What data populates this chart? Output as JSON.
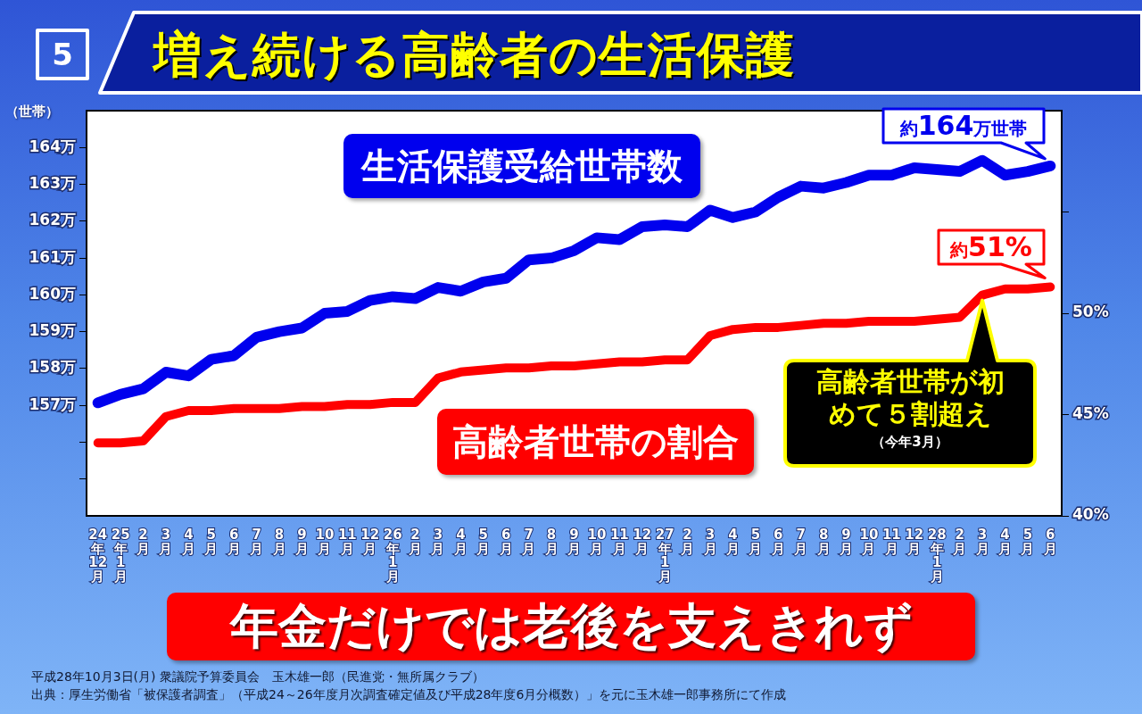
{
  "chart_data": {
    "type": "line",
    "title": "増え続ける高齢者の生活保護",
    "ylabel": "（世帯）",
    "categories": [
      "24年12月",
      "25年1月",
      "2月",
      "3月",
      "4月",
      "5月",
      "6月",
      "7月",
      "8月",
      "9月",
      "10月",
      "11月",
      "12月",
      "26年1月",
      "2月",
      "3月",
      "4月",
      "5月",
      "6月",
      "7月",
      "8月",
      "9月",
      "10月",
      "11月",
      "12月",
      "27年1月",
      "2月",
      "3月",
      "4月",
      "5月",
      "6月",
      "7月",
      "8月",
      "9月",
      "10月",
      "11月",
      "12月",
      "28年1月",
      "2月",
      "3月",
      "4月",
      "5月",
      "6月"
    ],
    "series": [
      {
        "name": "生活保護受給世帯数",
        "color": "#0000ee",
        "axis": "y",
        "values": [
          157.07,
          157.3,
          157.45,
          157.9,
          157.8,
          158.25,
          158.35,
          158.85,
          159.0,
          159.1,
          159.5,
          159.55,
          159.85,
          159.95,
          159.9,
          160.2,
          160.1,
          160.35,
          160.45,
          160.95,
          161.0,
          161.2,
          161.55,
          161.5,
          161.85,
          161.9,
          161.85,
          162.3,
          162.1,
          162.25,
          162.65,
          162.95,
          162.9,
          163.05,
          163.25,
          163.25,
          163.45,
          163.4,
          163.35,
          163.65,
          163.25,
          163.35,
          163.5
        ]
      },
      {
        "name": "高齢者世帯の割合",
        "color": "#ff0000",
        "axis": "y2",
        "values": [
          43.6,
          43.6,
          43.7,
          44.9,
          45.2,
          45.2,
          45.3,
          45.3,
          45.3,
          45.4,
          45.4,
          45.5,
          45.5,
          45.6,
          45.6,
          46.8,
          47.1,
          47.2,
          47.3,
          47.3,
          47.4,
          47.4,
          47.5,
          47.6,
          47.6,
          47.7,
          47.7,
          48.9,
          49.2,
          49.3,
          49.3,
          49.4,
          49.5,
          49.5,
          49.6,
          49.6,
          49.6,
          49.7,
          49.8,
          50.9,
          51.2,
          51.2,
          51.3
        ]
      }
    ],
    "ylim": [
      154,
      165
    ],
    "yticks": [
      {
        "value": 155,
        "label": null
      },
      {
        "value": 156,
        "label": null
      },
      {
        "value": 157,
        "label": "157万"
      },
      {
        "value": 158,
        "label": "158万"
      },
      {
        "value": 159,
        "label": "159万"
      },
      {
        "value": 160,
        "label": "160万"
      },
      {
        "value": 161,
        "label": "161万"
      },
      {
        "value": 162,
        "label": "162万"
      },
      {
        "value": 163,
        "label": "163万"
      },
      {
        "value": 164,
        "label": "164万"
      }
    ],
    "y2lim": [
      40,
      60
    ],
    "y2ticks": [
      {
        "value": 40,
        "label": "40%"
      },
      {
        "value": 45,
        "label": "45%"
      },
      {
        "value": 50,
        "label": "50%"
      },
      {
        "value": 55,
        "label": null
      }
    ],
    "marker": "none",
    "annotations": [
      "5",
      "約164万世帯",
      "約51%",
      "高齢者世帯が初めて５割超え",
      "（今年3月）",
      "年金だけでは老後を支えきれず",
      "平成28年10月3日(月) 衆議院予算委員会　玉木雄一郎（民進党・無所属クラブ）",
      "出典：厚生労働省「被保護者調査」（平成24～26年度月次調査確定値及び平成28年度6月分概数）」を元に玉木雄一郎事務所にて作成"
    ]
  }
}
